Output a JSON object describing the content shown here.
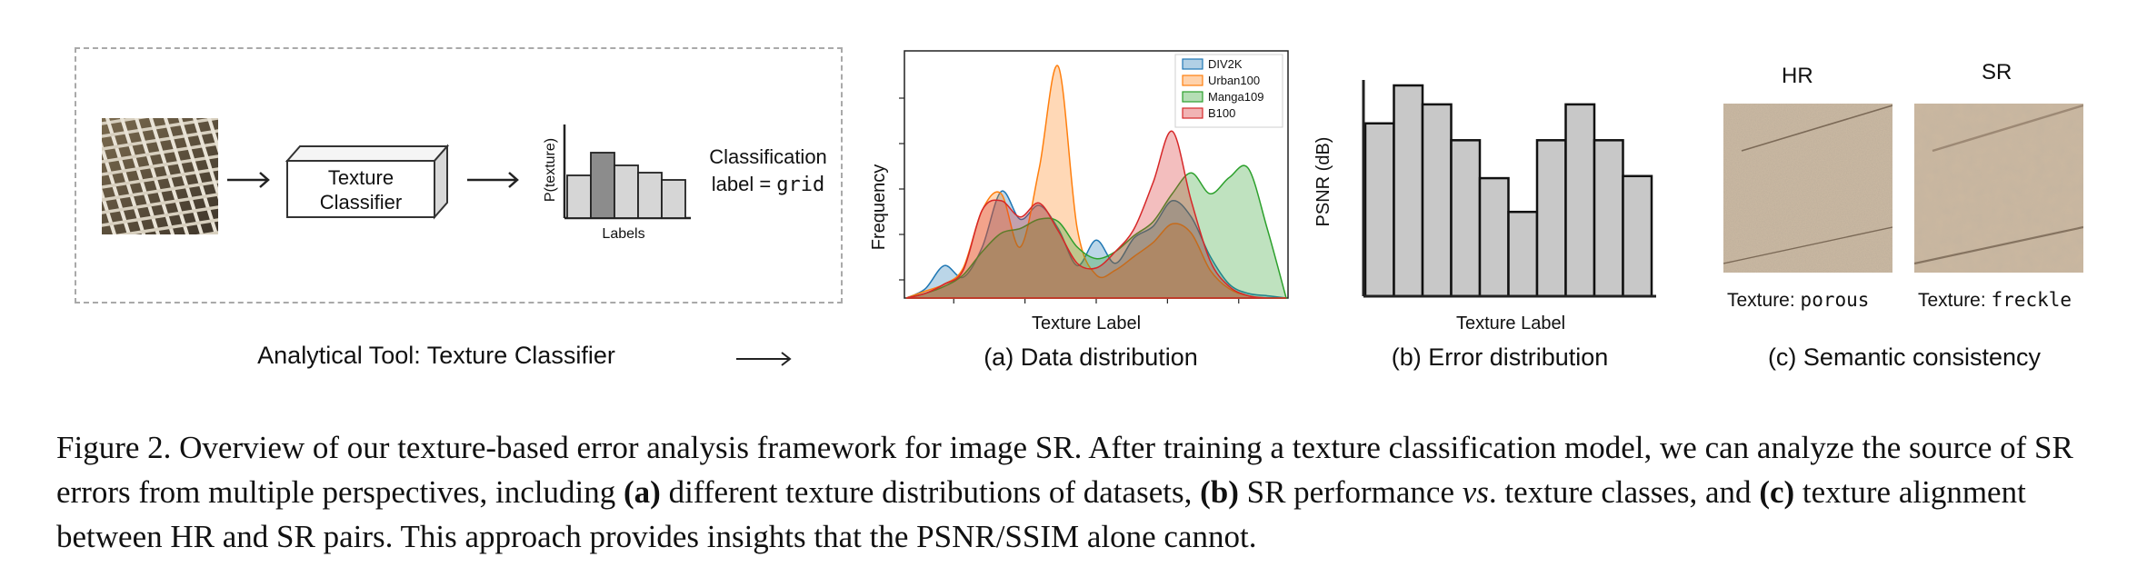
{
  "panel_tool": {
    "classifier_label_line1": "Texture",
    "classifier_label_line2": "Classifier",
    "y_axis": "P(texture)",
    "x_axis": "Labels",
    "result_line1": "Classification",
    "result_line2_prefix": "label = ",
    "result_label": "grid",
    "caption": "Analytical Tool: Texture Classifier",
    "bars": [
      0.47,
      0.72,
      0.58,
      0.5,
      0.42
    ]
  },
  "panel_a": {
    "ylabel": "Frequency",
    "xlabel": "Texture Label",
    "caption": "(a) Data distribution",
    "legend": [
      {
        "name": "DIV2K",
        "color": "#1f77b4"
      },
      {
        "name": "Urban100",
        "color": "#ff7f0e"
      },
      {
        "name": "Manga109",
        "color": "#2ca02c"
      },
      {
        "name": "B100",
        "color": "#d62728"
      }
    ]
  },
  "panel_b": {
    "ylabel": "PSNR (dB)",
    "xlabel": "Texture Label",
    "caption": "(b) Error distribution"
  },
  "panel_c": {
    "hr_label": "HR",
    "sr_label": "SR",
    "hr_texture_prefix": "Texture: ",
    "hr_texture": "porous",
    "sr_texture_prefix": "Texture: ",
    "sr_texture": "freckle",
    "caption": "(c) Semantic consistency"
  },
  "caption": {
    "fig_label": "Figure 2.",
    "t1": " Overview of our texture-based error analysis framework for image SR. After training a texture classification model, we can analyze the source of SR errors from multiple perspectives, including ",
    "a_bold": "(a)",
    "t2": " different texture distributions of datasets, ",
    "b_bold": "(b)",
    "t3": " SR performance ",
    "vs": "vs",
    "t4": ". texture classes, and ",
    "c_bold": "(c)",
    "t5": " texture alignment between HR and SR pairs. This approach provides insights that the PSNR/SSIM alone cannot."
  },
  "chart_data": [
    {
      "type": "area",
      "title": "(a) Data distribution",
      "xlabel": "Texture Label",
      "ylabel": "Frequency",
      "x": [
        0,
        0.5,
        1,
        1.5,
        2,
        2.5,
        3,
        3.5,
        4,
        4.5,
        5,
        5.5,
        6,
        6.5,
        7,
        7.5,
        8,
        8.5,
        9,
        9.5,
        10
      ],
      "series": [
        {
          "name": "DIV2K",
          "values": [
            0,
            0.04,
            0.14,
            0.09,
            0.22,
            0.46,
            0.34,
            0.4,
            0.3,
            0.14,
            0.25,
            0.15,
            0.26,
            0.31,
            0.42,
            0.35,
            0.18,
            0.06,
            0.02,
            0.01,
            0
          ]
        },
        {
          "name": "Urban100",
          "values": [
            0,
            0.03,
            0.06,
            0.13,
            0.38,
            0.45,
            0.22,
            0.56,
            1.0,
            0.3,
            0.1,
            0.12,
            0.18,
            0.24,
            0.32,
            0.28,
            0.12,
            0.04,
            0.01,
            0,
            0
          ]
        },
        {
          "name": "Manga109",
          "values": [
            0,
            0.02,
            0.05,
            0.1,
            0.2,
            0.28,
            0.3,
            0.34,
            0.33,
            0.22,
            0.17,
            0.2,
            0.27,
            0.33,
            0.45,
            0.54,
            0.45,
            0.52,
            0.56,
            0.3,
            0
          ]
        },
        {
          "name": "B100",
          "values": [
            0,
            0.02,
            0.06,
            0.12,
            0.38,
            0.42,
            0.35,
            0.41,
            0.29,
            0.15,
            0.13,
            0.2,
            0.3,
            0.5,
            0.72,
            0.42,
            0.16,
            0.05,
            0.01,
            0,
            0
          ]
        }
      ]
    },
    {
      "type": "bar",
      "title": "(b) Error distribution",
      "xlabel": "Texture Label",
      "ylabel": "PSNR (dB)",
      "values": [
        0.82,
        1.0,
        0.91,
        0.74,
        0.56,
        0.4,
        0.74,
        0.91,
        0.74,
        0.57
      ]
    }
  ]
}
